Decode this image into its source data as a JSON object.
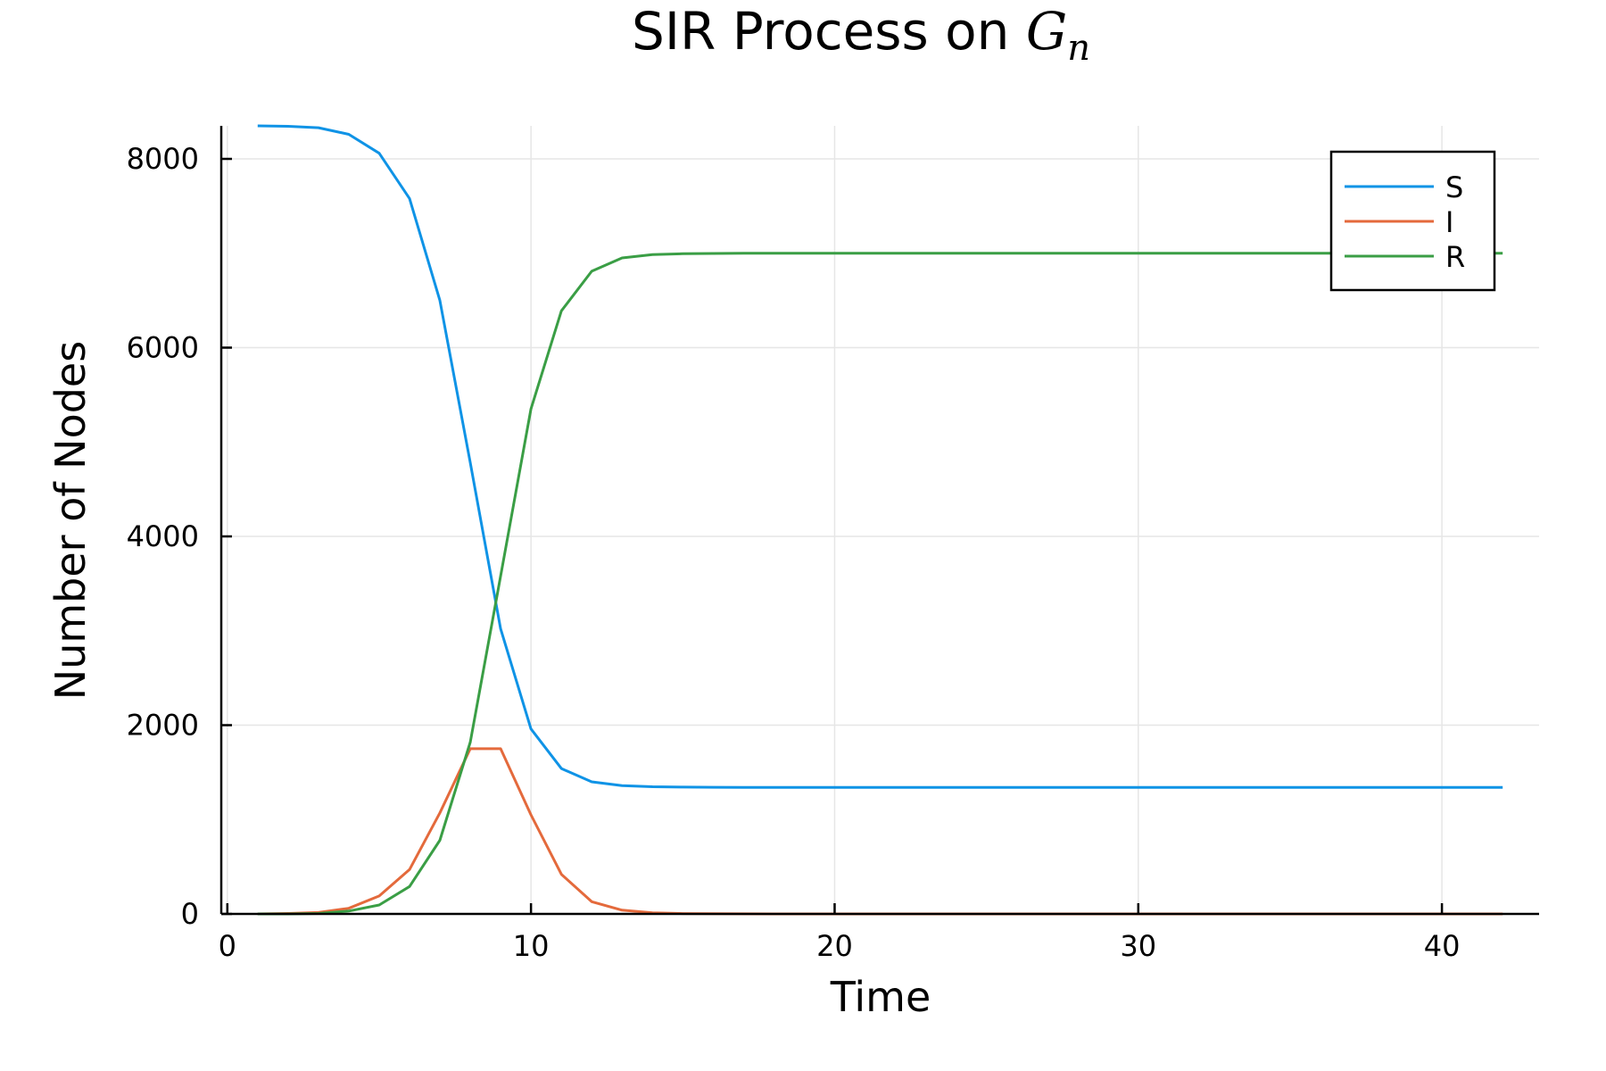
{
  "chart_data": {
    "type": "line",
    "title": "SIR Process on ",
    "title_math": "G",
    "title_math_subscript": "n",
    "xlabel": "Time",
    "ylabel": "Number of Nodes",
    "xlim": [
      -0.2,
      43.2
    ],
    "ylim": [
      0,
      8350
    ],
    "xticks": [
      0,
      10,
      20,
      30,
      40
    ],
    "xtick_labels": [
      "0",
      "10",
      "20",
      "30",
      "40"
    ],
    "yticks": [
      0,
      2000,
      4000,
      6000,
      8000
    ],
    "ytick_labels": [
      "0",
      "2000",
      "4000",
      "6000",
      "8000"
    ],
    "grid": true,
    "legend_position": "top-right",
    "x": [
      1,
      2,
      3,
      4,
      5,
      6,
      7,
      8,
      9,
      10,
      11,
      12,
      13,
      14,
      15,
      16,
      17,
      18,
      19,
      20,
      21,
      22,
      23,
      24,
      25,
      26,
      27,
      28,
      29,
      30,
      31,
      32,
      33,
      34,
      35,
      36,
      37,
      38,
      39,
      40,
      41,
      42
    ],
    "series": [
      {
        "name": "S",
        "color": "#0f93e6",
        "values": [
          8350,
          8345,
          8330,
          8260,
          8060,
          7580,
          6500,
          4780,
          3020,
          1960,
          1540,
          1400,
          1360,
          1348,
          1344,
          1342,
          1341,
          1340,
          1340,
          1340,
          1340,
          1340,
          1340,
          1340,
          1340,
          1340,
          1340,
          1340,
          1340,
          1340,
          1340,
          1340,
          1340,
          1340,
          1340,
          1340,
          1340,
          1340,
          1340,
          1340,
          1340,
          1340
        ]
      },
      {
        "name": "I",
        "color": "#e46a3c",
        "values": [
          0,
          5,
          15,
          60,
          190,
          470,
          1070,
          1750,
          1750,
          1050,
          420,
          130,
          40,
          12,
          4,
          2,
          1,
          0,
          0,
          0,
          0,
          0,
          0,
          0,
          0,
          0,
          0,
          0,
          0,
          0,
          0,
          0,
          0,
          0,
          0,
          0,
          0,
          0,
          0,
          0,
          0,
          0
        ]
      },
      {
        "name": "R",
        "color": "#3a9e45",
        "values": [
          0,
          0,
          5,
          30,
          95,
          290,
          780,
          1820,
          3580,
          5350,
          6390,
          6810,
          6950,
          6985,
          6995,
          6998,
          7000,
          7000,
          7000,
          7000,
          7000,
          7000,
          7000,
          7000,
          7000,
          7000,
          7000,
          7000,
          7000,
          7000,
          7000,
          7000,
          7000,
          7000,
          7000,
          7000,
          7000,
          7000,
          7000,
          7000,
          7000,
          7000
        ]
      }
    ]
  }
}
